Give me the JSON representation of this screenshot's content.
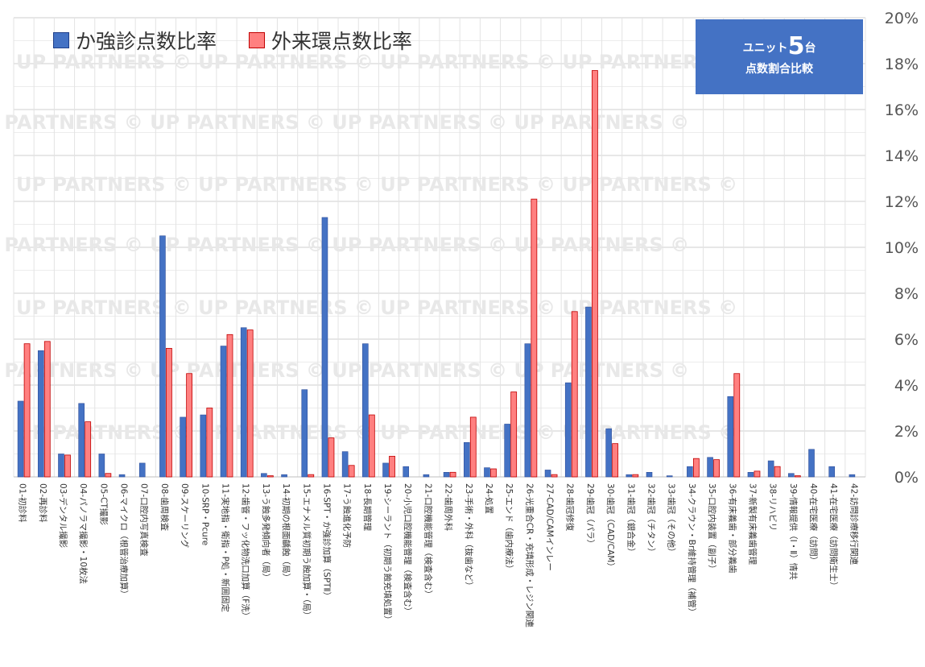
{
  "legend": {
    "series1": "か強診点数比率",
    "series2": "外来環点数比率"
  },
  "badge": {
    "prefix": "ユニット",
    "number": "5",
    "suffix": "台",
    "subtitle": "点数割合比較"
  },
  "watermark": "UP PARTNERS © UP PARTNERS © UP PARTNERS © UP PARTNERS ©",
  "colors": {
    "series1": "#4472c4",
    "series2": "#ff8080",
    "badge": "#4472c4",
    "grid": "#d9d9d9"
  },
  "chart_data": {
    "type": "bar",
    "ylim": [
      0,
      20
    ],
    "y_ticks": [
      "0%",
      "2%",
      "4%",
      "6%",
      "8%",
      "10%",
      "12%",
      "14%",
      "16%",
      "18%",
      "20%"
    ],
    "y_axis_position": "right",
    "grid": true,
    "legend_position": "top-left",
    "categories": [
      "01-初診料",
      "02-再診料",
      "03-デンタル撮影",
      "04-パノラマ撮影・10枚法",
      "05-CT撮影",
      "06-マイクロ（根管治療加算）",
      "07-口腔内写真検査",
      "08-歯周検査",
      "09-スケーリング",
      "10-SRP・Pcure",
      "11-実地指・衛指・P処・新囲固定",
      "12-歯管・フッ化物洗口加算（F洗）",
      "13-う蝕多発傾向者（局）",
      "14-初期の根面齲蝕（局）",
      "15-エナメル質初期う蝕加算・（局）",
      "16-SPT・か強診加算（SPTⅡ）",
      "17-う蝕進化予防",
      "18-長期管理",
      "19-シーラント（初期う蝕充填処置）",
      "20-小児口腔機能管理（検査含む）",
      "21-口腔機能管理（検査含む）",
      "22-歯周外科",
      "23-手術・外科（抜歯など）",
      "24-処置",
      "25-エンド（歯内療法）",
      "26-光重合CR・充填形成・レジン関連",
      "27-CAD/CAMインレー",
      "28-歯冠修復",
      "29-歯冠（パラ）",
      "30-歯冠（CAD/CAM）",
      "31-歯冠（銀合金）",
      "32-歯冠（チタン）",
      "33-歯冠（その他）",
      "34-クラウン・Br維持管理（補管）",
      "35-口腔内装置（副子）",
      "36-有床義歯・部分義歯",
      "37-新製有床義歯管理",
      "38-リハビリ",
      "39-情報提供（Ⅰ・Ⅱ）情共",
      "40-在宅医療（訪問）",
      "41-在宅医療（訪問衛生士）",
      "42-訪問診療移行関連"
    ],
    "series": [
      {
        "name": "か強診点数比率",
        "values": [
          3.3,
          5.5,
          1.0,
          3.2,
          1.0,
          0.1,
          0.6,
          10.5,
          2.6,
          2.7,
          5.7,
          6.5,
          0.15,
          0.1,
          3.8,
          11.3,
          1.1,
          5.8,
          0.6,
          0.45,
          0.1,
          0.2,
          1.5,
          0.4,
          2.3,
          5.8,
          0.3,
          4.1,
          7.4,
          2.1,
          0.1,
          0.2,
          0.05,
          0.45,
          0.85,
          3.5,
          0.2,
          0.7,
          0.15,
          1.2,
          0.45,
          0.1
        ]
      },
      {
        "name": "外来環点数比率",
        "values": [
          5.8,
          5.9,
          0.95,
          2.4,
          0.15,
          0.0,
          0.0,
          5.6,
          4.5,
          3.0,
          6.2,
          6.4,
          0.05,
          0.0,
          0.1,
          1.7,
          0.5,
          2.7,
          0.9,
          0.0,
          0.0,
          0.2,
          2.6,
          0.35,
          3.7,
          12.1,
          0.1,
          7.2,
          17.7,
          1.45,
          0.1,
          0.0,
          0.0,
          0.8,
          0.75,
          4.5,
          0.25,
          0.45,
          0.05,
          0.0,
          0.0,
          0.0
        ]
      }
    ]
  }
}
